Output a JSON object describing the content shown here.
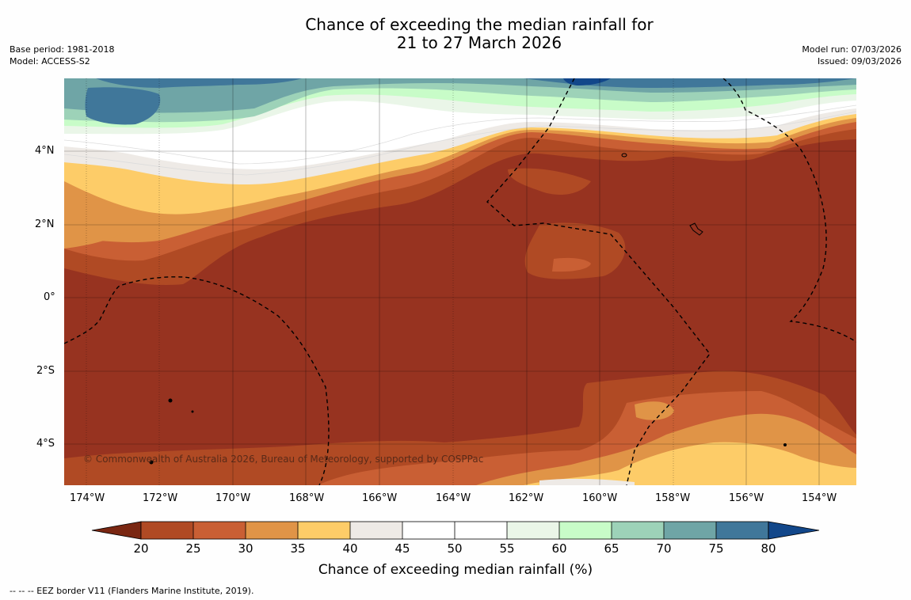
{
  "title": {
    "line1": "Chance of exceeding the median rainfall for",
    "line2": "21 to 27 March 2026"
  },
  "meta_left": {
    "base_period": "Base period: 1981-2018",
    "model": "Model: ACCESS-S2"
  },
  "meta_right": {
    "model_run": "Model run: 07/03/2026",
    "issued": "Issued: 09/03/2026"
  },
  "map": {
    "lon_labels": [
      "174°W",
      "172°W",
      "170°W",
      "168°W",
      "166°W",
      "164°W",
      "162°W",
      "160°W",
      "158°W",
      "156°W",
      "154°W"
    ],
    "lat_labels": [
      "4°N",
      "2°N",
      "0°",
      "2°S",
      "4°S"
    ],
    "copyright": "© Commonwealth of Australia 2026, Bureau of Meteorology, supported by COSPPac"
  },
  "colorbar": {
    "ticks": [
      "20",
      "25",
      "30",
      "35",
      "40",
      "45",
      "50",
      "55",
      "60",
      "65",
      "70",
      "75",
      "80"
    ],
    "colors": {
      "lt20": "#7a2712",
      "20-25": "#b04a24",
      "25-30": "#c95f34",
      "30-35": "#e09447",
      "35-40": "#fdcc68",
      "40-45": "#eeeae6",
      "45-50": "#ffffff",
      "50-55": "#ffffff",
      "55-60": "#eaf6e8",
      "60-65": "#c8fcc8",
      "65-70": "#9dd2b8",
      "70-75": "#6fa5a6",
      "75-80": "#40779a",
      "gt80": "#12478a"
    },
    "label": "Chance of exceeding median rainfall (%)"
  },
  "footer": {
    "legend": "--  --  -- EEZ border V11 (Flanders Marine Institute, 2019)."
  }
}
